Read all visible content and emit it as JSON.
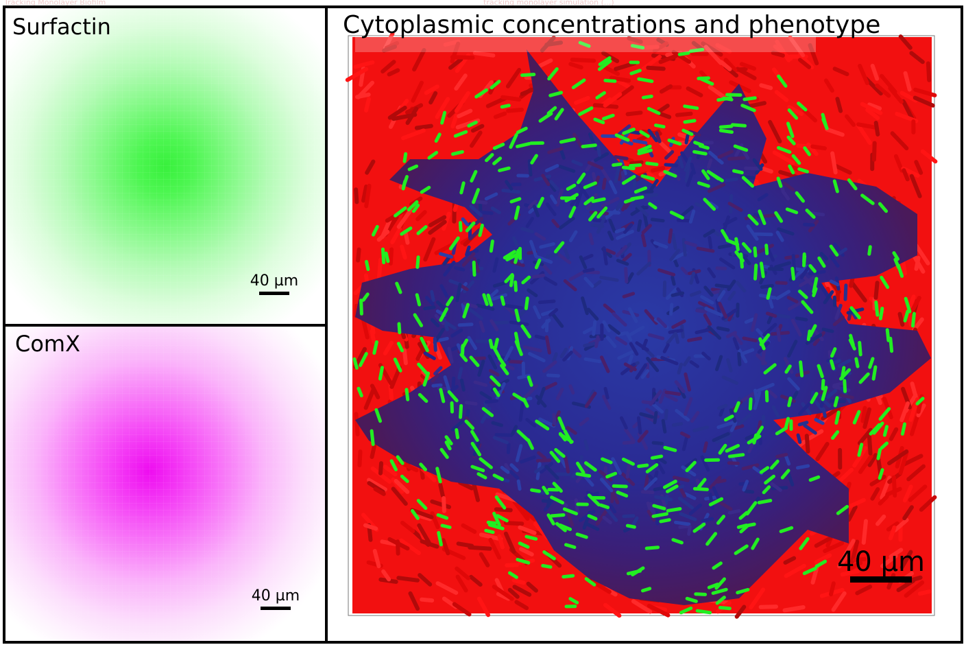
{
  "top_strip": {
    "left_text": "Tracking Monolayer Biofilm",
    "center_text": "tracking monolayer simulation (...)"
  },
  "panels": {
    "surfactin": {
      "title": "Surfactin",
      "scale_label": "40 µm",
      "color": "#3cf03f"
    },
    "comx": {
      "title": "ComX",
      "scale_label": "40 µm",
      "color": "#ee0cf0"
    },
    "cells": {
      "title": "Cytoplasmic concentrations and phenotype",
      "scale_label": "40 µm",
      "colors": {
        "outer": "#ff1010",
        "inner": "#2a2a8c",
        "highlight": "#22ee22"
      }
    }
  }
}
